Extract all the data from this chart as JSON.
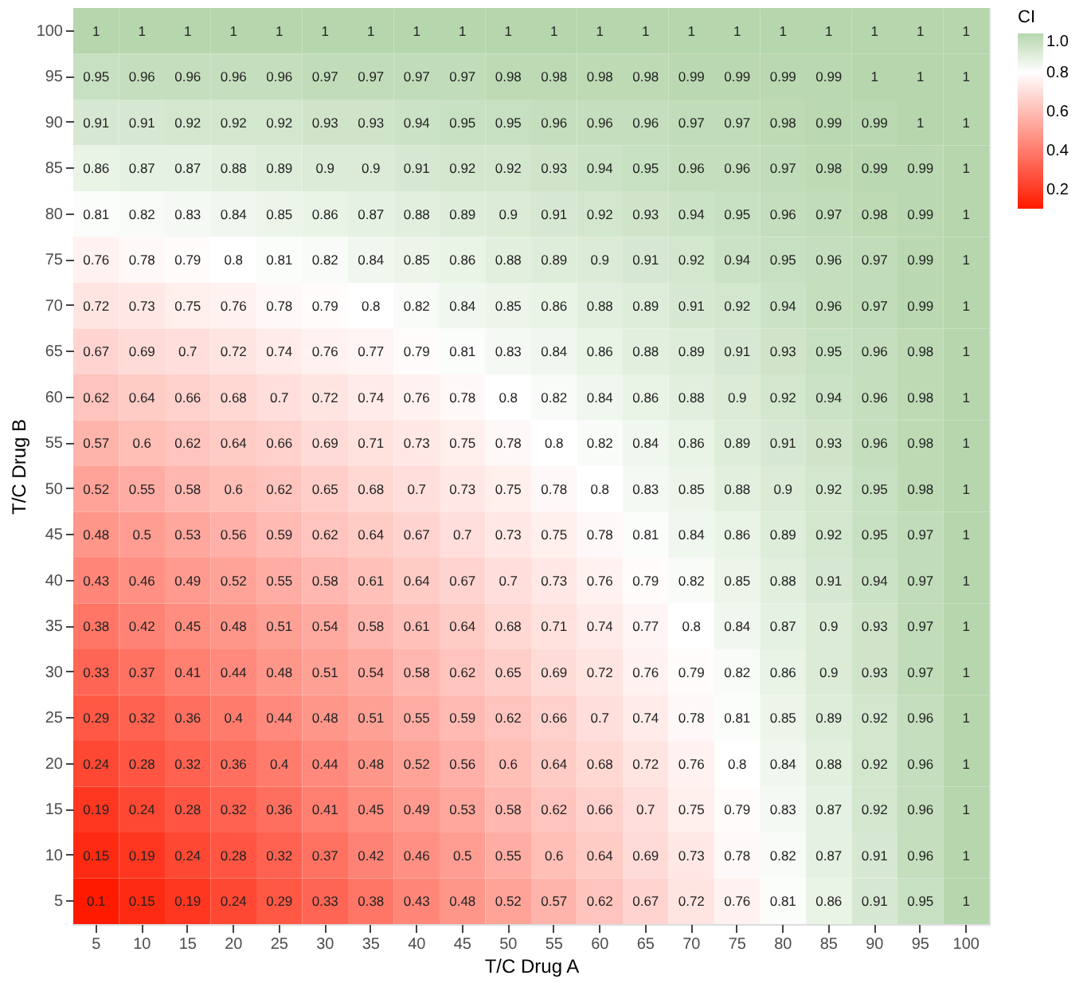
{
  "chart_data": {
    "type": "heatmap",
    "xlabel": "T/C Drug A",
    "ylabel": "T/C Drug B",
    "legend_title": "CI",
    "categories": [
      "5",
      "10",
      "15",
      "20",
      "25",
      "30",
      "35",
      "40",
      "45",
      "50",
      "55",
      "60",
      "65",
      "70",
      "75",
      "80",
      "85",
      "90",
      "95",
      "100"
    ],
    "y_categories": [
      "100",
      "95",
      "90",
      "85",
      "80",
      "75",
      "70",
      "65",
      "60",
      "55",
      "50",
      "45",
      "40",
      "35",
      "30",
      "25",
      "20",
      "15",
      "10",
      "5"
    ],
    "cells": [
      [
        1,
        1,
        1,
        1,
        1,
        1,
        1,
        1,
        1,
        1,
        1,
        1,
        1,
        1,
        1,
        1,
        1,
        1,
        1,
        1
      ],
      [
        0.95,
        0.96,
        0.96,
        0.96,
        0.96,
        0.97,
        0.97,
        0.97,
        0.97,
        0.98,
        0.98,
        0.98,
        0.98,
        0.99,
        0.99,
        0.99,
        0.99,
        1,
        1,
        1
      ],
      [
        0.91,
        0.91,
        0.92,
        0.92,
        0.92,
        0.93,
        0.93,
        0.94,
        0.95,
        0.95,
        0.96,
        0.96,
        0.96,
        0.97,
        0.97,
        0.98,
        0.99,
        0.99,
        1,
        1
      ],
      [
        0.86,
        0.87,
        0.87,
        0.88,
        0.89,
        0.9,
        0.9,
        0.91,
        0.92,
        0.92,
        0.93,
        0.94,
        0.95,
        0.96,
        0.96,
        0.97,
        0.98,
        0.99,
        0.99,
        1
      ],
      [
        0.81,
        0.82,
        0.83,
        0.84,
        0.85,
        0.86,
        0.87,
        0.88,
        0.89,
        0.9,
        0.91,
        0.92,
        0.93,
        0.94,
        0.95,
        0.96,
        0.97,
        0.98,
        0.99,
        1
      ],
      [
        0.76,
        0.78,
        0.79,
        0.8,
        0.81,
        0.82,
        0.84,
        0.85,
        0.86,
        0.88,
        0.89,
        0.9,
        0.91,
        0.92,
        0.94,
        0.95,
        0.96,
        0.97,
        0.99,
        1
      ],
      [
        0.72,
        0.73,
        0.75,
        0.76,
        0.78,
        0.79,
        0.8,
        0.82,
        0.84,
        0.85,
        0.86,
        0.88,
        0.89,
        0.91,
        0.92,
        0.94,
        0.96,
        0.97,
        0.99,
        1
      ],
      [
        0.67,
        0.69,
        0.7,
        0.72,
        0.74,
        0.76,
        0.77,
        0.79,
        0.81,
        0.83,
        0.84,
        0.86,
        0.88,
        0.89,
        0.91,
        0.93,
        0.95,
        0.96,
        0.98,
        1
      ],
      [
        0.62,
        0.64,
        0.66,
        0.68,
        0.7,
        0.72,
        0.74,
        0.76,
        0.78,
        0.8,
        0.82,
        0.84,
        0.86,
        0.88,
        0.9,
        0.92,
        0.94,
        0.96,
        0.98,
        1
      ],
      [
        0.57,
        0.6,
        0.62,
        0.64,
        0.66,
        0.69,
        0.71,
        0.73,
        0.75,
        0.78,
        0.8,
        0.82,
        0.84,
        0.86,
        0.89,
        0.91,
        0.93,
        0.96,
        0.98,
        1
      ],
      [
        0.52,
        0.55,
        0.58,
        0.6,
        0.62,
        0.65,
        0.68,
        0.7,
        0.73,
        0.75,
        0.78,
        0.8,
        0.83,
        0.85,
        0.88,
        0.9,
        0.92,
        0.95,
        0.98,
        1
      ],
      [
        0.48,
        0.5,
        0.53,
        0.56,
        0.59,
        0.62,
        0.64,
        0.67,
        0.7,
        0.73,
        0.75,
        0.78,
        0.81,
        0.84,
        0.86,
        0.89,
        0.92,
        0.95,
        0.97,
        1
      ],
      [
        0.43,
        0.46,
        0.49,
        0.52,
        0.55,
        0.58,
        0.61,
        0.64,
        0.67,
        0.7,
        0.73,
        0.76,
        0.79,
        0.82,
        0.85,
        0.88,
        0.91,
        0.94,
        0.97,
        1
      ],
      [
        0.38,
        0.42,
        0.45,
        0.48,
        0.51,
        0.54,
        0.58,
        0.61,
        0.64,
        0.68,
        0.71,
        0.74,
        0.77,
        0.8,
        0.84,
        0.87,
        0.9,
        0.93,
        0.97,
        1
      ],
      [
        0.33,
        0.37,
        0.41,
        0.44,
        0.48,
        0.51,
        0.54,
        0.58,
        0.62,
        0.65,
        0.69,
        0.72,
        0.76,
        0.79,
        0.82,
        0.86,
        0.9,
        0.93,
        0.97,
        1
      ],
      [
        0.29,
        0.32,
        0.36,
        0.4,
        0.44,
        0.48,
        0.51,
        0.55,
        0.59,
        0.62,
        0.66,
        0.7,
        0.74,
        0.78,
        0.81,
        0.85,
        0.89,
        0.92,
        0.96,
        1
      ],
      [
        0.24,
        0.28,
        0.32,
        0.36,
        0.4,
        0.44,
        0.48,
        0.52,
        0.56,
        0.6,
        0.64,
        0.68,
        0.72,
        0.76,
        0.8,
        0.84,
        0.88,
        0.92,
        0.96,
        1
      ],
      [
        0.19,
        0.24,
        0.28,
        0.32,
        0.36,
        0.41,
        0.45,
        0.49,
        0.53,
        0.58,
        0.62,
        0.66,
        0.7,
        0.75,
        0.79,
        0.83,
        0.87,
        0.92,
        0.96,
        1
      ],
      [
        0.15,
        0.19,
        0.24,
        0.28,
        0.32,
        0.37,
        0.42,
        0.46,
        0.5,
        0.55,
        0.6,
        0.64,
        0.69,
        0.73,
        0.78,
        0.82,
        0.87,
        0.91,
        0.96,
        1
      ],
      [
        0.1,
        0.15,
        0.19,
        0.24,
        0.29,
        0.33,
        0.38,
        0.43,
        0.48,
        0.52,
        0.57,
        0.62,
        0.67,
        0.72,
        0.76,
        0.81,
        0.86,
        0.91,
        0.95,
        1
      ]
    ],
    "clim": [
      0.1,
      1
    ],
    "cticks": [
      0.2,
      0.4,
      0.6,
      0.8,
      {
        "value": 1,
        "label": "1.0"
      }
    ],
    "data_labels": true
  }
}
